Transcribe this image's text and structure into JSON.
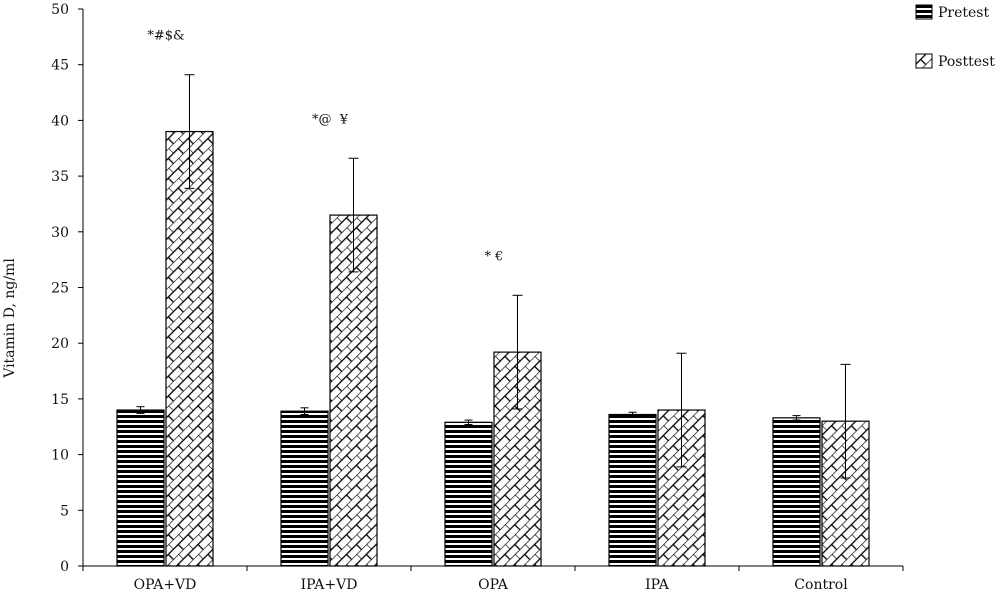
{
  "chart_data": {
    "type": "bar",
    "ylabel": "Vitamin D, ng/ml",
    "ylim": [
      0,
      50
    ],
    "yticks": [
      "0",
      "5",
      "10",
      "15",
      "20",
      "25",
      "30",
      "35",
      "40",
      "45",
      "50"
    ],
    "categories": [
      "OPA+VD",
      "IPA+VD",
      "OPA",
      "IPA",
      "Control"
    ],
    "series": [
      {
        "name": "Pretest",
        "pattern": "horizontal-stripes",
        "values": [
          14.0,
          13.9,
          12.9,
          13.6,
          13.3
        ],
        "errors": [
          0.3,
          0.3,
          0.2,
          0.2,
          0.2
        ]
      },
      {
        "name": "Posttest",
        "pattern": "diagonal-brick",
        "values": [
          39.0,
          31.5,
          19.2,
          14.0,
          13.0
        ],
        "errors": [
          5.1,
          5.1,
          5.1,
          5.1,
          5.1
        ]
      }
    ],
    "annotations": [
      "*#$&",
      "*@  ¥",
      "* €",
      "",
      ""
    ],
    "legend_position": "top-right",
    "grid": false
  },
  "colors": {
    "bar_outline": "#000000",
    "axis": "#000000",
    "background": "#ffffff"
  }
}
